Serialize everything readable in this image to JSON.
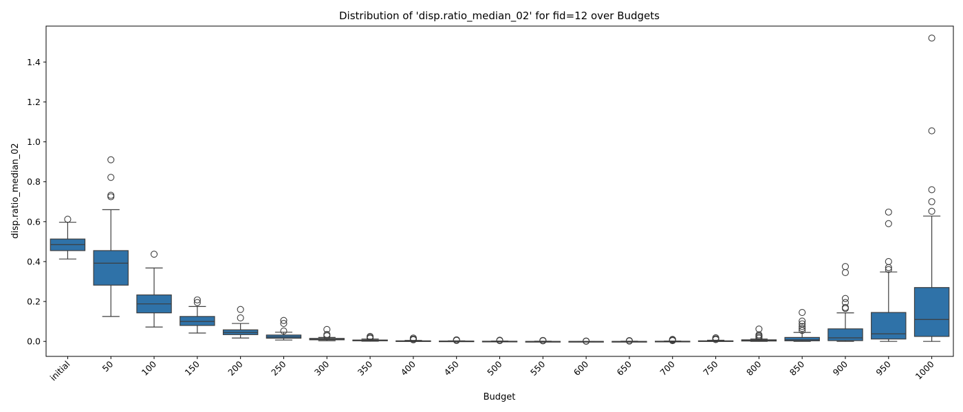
{
  "chart_data": {
    "type": "box",
    "title": "Distribution of 'disp.ratio_median_02' for fid=12 over Budgets",
    "xlabel": "Budget",
    "ylabel": "disp.ratio_median_02",
    "ylim": [
      -0.075,
      1.58
    ],
    "yticks": [
      "0.0",
      "0.2",
      "0.4",
      "0.6",
      "0.8",
      "1.0",
      "1.2",
      "1.4"
    ],
    "box_color": "#2f72a8",
    "categories": [
      "initial",
      "50",
      "100",
      "150",
      "200",
      "250",
      "300",
      "350",
      "400",
      "450",
      "500",
      "550",
      "600",
      "650",
      "700",
      "750",
      "800",
      "850",
      "900",
      "950",
      "1000"
    ],
    "boxes": [
      {
        "whislo": 0.413,
        "q1": 0.455,
        "med": 0.485,
        "q3": 0.513,
        "whishi": 0.597,
        "fliers": [
          0.612
        ]
      },
      {
        "whislo": 0.125,
        "q1": 0.282,
        "med": 0.392,
        "q3": 0.455,
        "whishi": 0.66,
        "fliers": [
          0.725,
          0.732,
          0.822,
          0.91
        ]
      },
      {
        "whislo": 0.072,
        "q1": 0.143,
        "med": 0.188,
        "q3": 0.233,
        "whishi": 0.368,
        "fliers": [
          0.437
        ]
      },
      {
        "whislo": 0.042,
        "q1": 0.08,
        "med": 0.1,
        "q3": 0.125,
        "whishi": 0.175,
        "fliers": [
          0.195,
          0.208
        ]
      },
      {
        "whislo": 0.017,
        "q1": 0.034,
        "med": 0.045,
        "q3": 0.058,
        "whishi": 0.09,
        "fliers": [
          0.118,
          0.16
        ]
      },
      {
        "whislo": 0.007,
        "q1": 0.016,
        "med": 0.022,
        "q3": 0.032,
        "whishi": 0.046,
        "fliers": [
          0.052,
          0.09,
          0.105
        ]
      },
      {
        "whislo": 0.003,
        "q1": 0.008,
        "med": 0.011,
        "q3": 0.015,
        "whishi": 0.02,
        "fliers": [
          0.028,
          0.035,
          0.06
        ]
      },
      {
        "whislo": 0.001,
        "q1": 0.003,
        "med": 0.005,
        "q3": 0.007,
        "whishi": 0.012,
        "fliers": [
          0.016,
          0.02,
          0.025
        ]
      },
      {
        "whislo": 0.0,
        "q1": 0.001,
        "med": 0.002,
        "q3": 0.003,
        "whishi": 0.005,
        "fliers": [
          0.008,
          0.012,
          0.017
        ]
      },
      {
        "whislo": 0.0,
        "q1": 0.0,
        "med": 0.001,
        "q3": 0.002,
        "whishi": 0.003,
        "fliers": [
          0.005,
          0.008
        ]
      },
      {
        "whislo": 0.0,
        "q1": 0.0,
        "med": 0.0,
        "q3": 0.001,
        "whishi": 0.002,
        "fliers": [
          0.004,
          0.006
        ]
      },
      {
        "whislo": 0.0,
        "q1": 0.0,
        "med": 0.0,
        "q3": 0.0,
        "whishi": 0.001,
        "fliers": [
          0.003,
          0.005
        ]
      },
      {
        "whislo": 0.0,
        "q1": 0.0,
        "med": 0.0,
        "q3": 0.0,
        "whishi": 0.0,
        "fliers": [
          0.001,
          0.002
        ]
      },
      {
        "whislo": 0.0,
        "q1": 0.0,
        "med": 0.0,
        "q3": 0.0,
        "whishi": 0.001,
        "fliers": [
          0.002,
          0.004
        ]
      },
      {
        "whislo": 0.0,
        "q1": 0.0,
        "med": 0.0,
        "q3": 0.001,
        "whishi": 0.002,
        "fliers": [
          0.004,
          0.007,
          0.01
        ]
      },
      {
        "whislo": 0.0,
        "q1": 0.0,
        "med": 0.001,
        "q3": 0.003,
        "whishi": 0.006,
        "fliers": [
          0.009,
          0.013,
          0.018
        ]
      },
      {
        "whislo": 0.0,
        "q1": 0.002,
        "med": 0.004,
        "q3": 0.008,
        "whishi": 0.012,
        "fliers": [
          0.016,
          0.022,
          0.028,
          0.033,
          0.062
        ]
      },
      {
        "whislo": 0.0,
        "q1": 0.003,
        "med": 0.008,
        "q3": 0.02,
        "whishi": 0.045,
        "fliers": [
          0.055,
          0.065,
          0.075,
          0.088,
          0.102,
          0.145
        ]
      },
      {
        "whislo": 0.0,
        "q1": 0.004,
        "med": 0.018,
        "q3": 0.063,
        "whishi": 0.143,
        "fliers": [
          0.165,
          0.17,
          0.195,
          0.215,
          0.345,
          0.375
        ]
      },
      {
        "whislo": 0.0,
        "q1": 0.012,
        "med": 0.038,
        "q3": 0.145,
        "whishi": 0.348,
        "fliers": [
          0.36,
          0.37,
          0.4,
          0.59,
          0.648
        ]
      },
      {
        "whislo": 0.0,
        "q1": 0.025,
        "med": 0.11,
        "q3": 0.27,
        "whishi": 0.628,
        "fliers": [
          0.652,
          0.7,
          0.76,
          1.055,
          1.52
        ]
      }
    ]
  }
}
